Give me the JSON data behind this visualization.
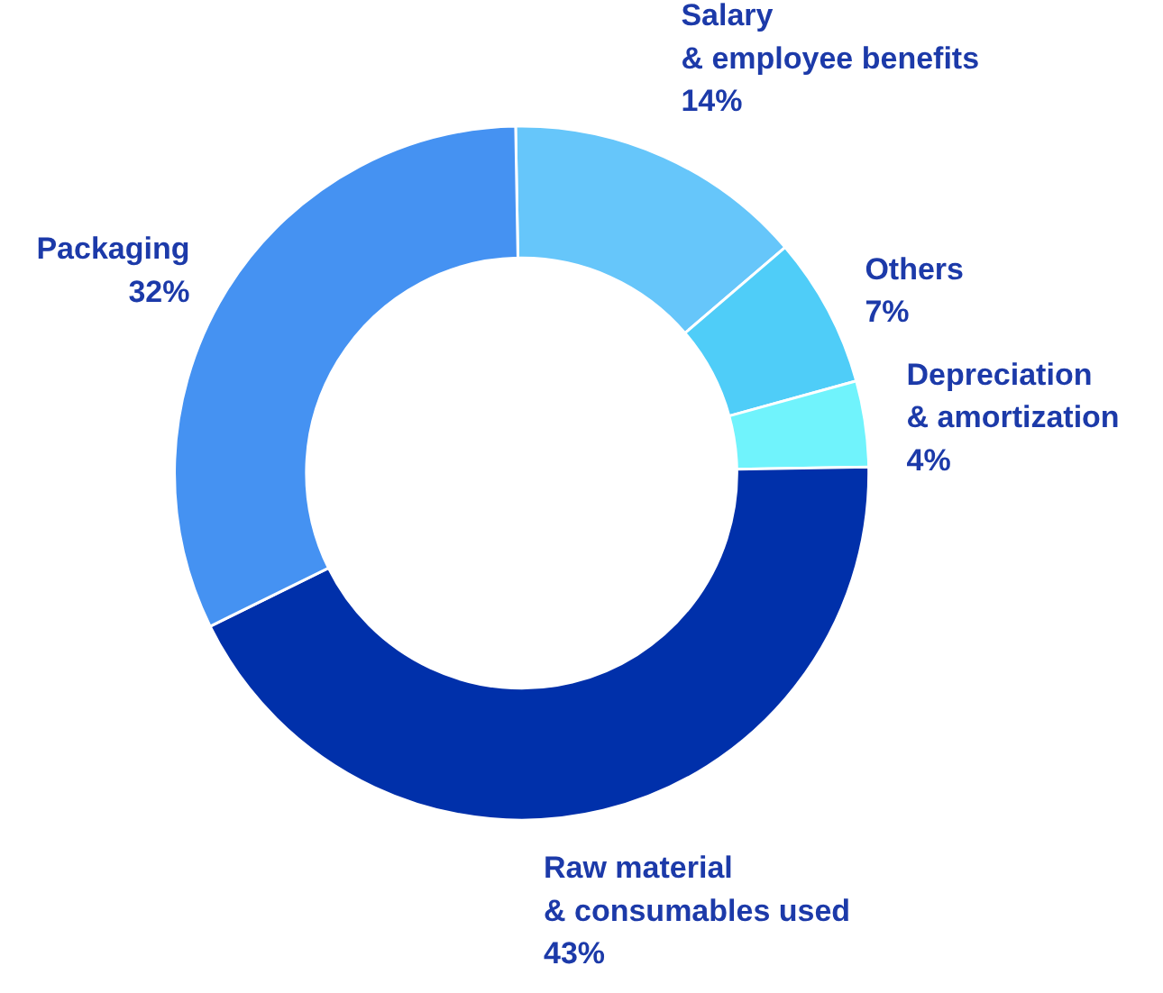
{
  "chart_data": {
    "type": "donut",
    "categories": [
      "Salary\n& employee benefits",
      "Others",
      "Depreciation\n& amortization",
      "Raw material\n& consumables used",
      "Packaging"
    ],
    "values": [
      14,
      7,
      4,
      43,
      32
    ],
    "value_labels": [
      "14%",
      "7%",
      "4%",
      "43%",
      "32%"
    ],
    "colors": [
      "#66c6fa",
      "#4fcdf8",
      "#70f3fc",
      "#0030aa",
      "#4592f2"
    ]
  }
}
